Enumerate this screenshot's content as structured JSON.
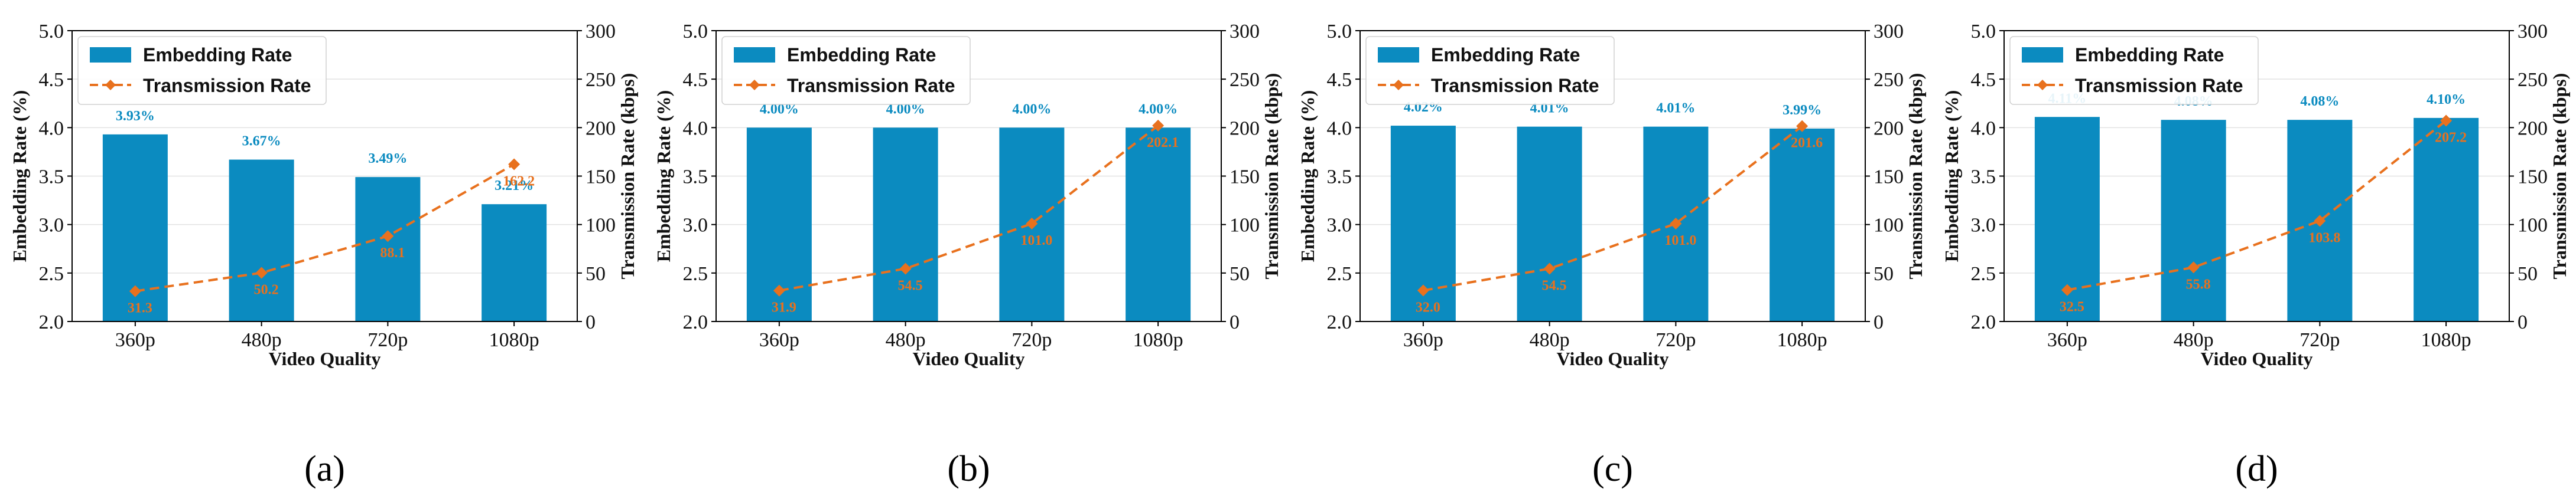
{
  "colors": {
    "bar": "#0b8bc0",
    "line": "#e8711e",
    "grid": "#e2e2e2"
  },
  "legend": {
    "embedding": "Embedding Rate",
    "transmission": "Transmission Rate"
  },
  "chart_data": [
    {
      "type": "bar",
      "caption": "(a)",
      "categories": [
        "360p",
        "480p",
        "720p",
        "1080p"
      ],
      "xlabel": "Video Quality",
      "ylabel": "Embedding Rate (%)",
      "y2label": "Transmission Rate (kbps)",
      "ylim": [
        2.0,
        5.0
      ],
      "yticks": [
        "2.0",
        "2.5",
        "3.0",
        "3.5",
        "4.0",
        "4.5",
        "5.0"
      ],
      "y2lim": [
        0,
        300
      ],
      "y2ticks": [
        "0",
        "50",
        "100",
        "150",
        "200",
        "250",
        "300"
      ],
      "series": [
        {
          "name": "Embedding Rate",
          "values": [
            3.93,
            3.67,
            3.49,
            3.21
          ],
          "labels": [
            "3.93%",
            "3.67%",
            "3.49%",
            "3.21%"
          ]
        },
        {
          "name": "Transmission Rate",
          "values": [
            31.3,
            50.2,
            88.1,
            162.2
          ],
          "labels": [
            "31.3",
            "50.2",
            "88.1",
            "162.2"
          ]
        }
      ],
      "grid": true,
      "legend_position": "top-left"
    },
    {
      "type": "bar",
      "caption": "(b)",
      "categories": [
        "360p",
        "480p",
        "720p",
        "1080p"
      ],
      "xlabel": "Video Quality",
      "ylabel": "Embedding Rate (%)",
      "y2label": "Transmission Rate (kbps)",
      "ylim": [
        2.0,
        5.0
      ],
      "yticks": [
        "2.0",
        "2.5",
        "3.0",
        "3.5",
        "4.0",
        "4.5",
        "5.0"
      ],
      "y2lim": [
        0,
        300
      ],
      "y2ticks": [
        "0",
        "50",
        "100",
        "150",
        "200",
        "250",
        "300"
      ],
      "series": [
        {
          "name": "Embedding Rate",
          "values": [
            4.0,
            4.0,
            4.0,
            4.0
          ],
          "labels": [
            "4.00%",
            "4.00%",
            "4.00%",
            "4.00%"
          ]
        },
        {
          "name": "Transmission Rate",
          "values": [
            31.9,
            54.5,
            101.0,
            202.1
          ],
          "labels": [
            "31.9",
            "54.5",
            "101.0",
            "202.1"
          ]
        }
      ],
      "grid": true,
      "legend_position": "top-left"
    },
    {
      "type": "bar",
      "caption": "(c)",
      "categories": [
        "360p",
        "480p",
        "720p",
        "1080p"
      ],
      "xlabel": "Video Quality",
      "ylabel": "Embedding Rate (%)",
      "y2label": "Transmission Rate (kbps)",
      "ylim": [
        2.0,
        5.0
      ],
      "yticks": [
        "2.0",
        "2.5",
        "3.0",
        "3.5",
        "4.0",
        "4.5",
        "5.0"
      ],
      "y2lim": [
        0,
        300
      ],
      "y2ticks": [
        "0",
        "50",
        "100",
        "150",
        "200",
        "250",
        "300"
      ],
      "series": [
        {
          "name": "Embedding Rate",
          "values": [
            4.02,
            4.01,
            4.01,
            3.99
          ],
          "labels": [
            "4.02%",
            "4.01%",
            "4.01%",
            "3.99%"
          ]
        },
        {
          "name": "Transmission Rate",
          "values": [
            32.0,
            54.5,
            101.0,
            201.6
          ],
          "labels": [
            "32.0",
            "54.5",
            "101.0",
            "201.6"
          ]
        }
      ],
      "grid": true,
      "legend_position": "top-left"
    },
    {
      "type": "bar",
      "caption": "(d)",
      "categories": [
        "360p",
        "480p",
        "720p",
        "1080p"
      ],
      "xlabel": "Video Quality",
      "ylabel": "Embedding Rate (%)",
      "y2label": "Transmission Rate (kbps)",
      "ylim": [
        2.0,
        5.0
      ],
      "yticks": [
        "2.0",
        "2.5",
        "3.0",
        "3.5",
        "4.0",
        "4.5",
        "5.0"
      ],
      "y2lim": [
        0,
        300
      ],
      "y2ticks": [
        "0",
        "50",
        "100",
        "150",
        "200",
        "250",
        "300"
      ],
      "series": [
        {
          "name": "Embedding Rate",
          "values": [
            4.11,
            4.08,
            4.08,
            4.1
          ],
          "labels": [
            "4.11%",
            "4.08%",
            "4.08%",
            "4.10%"
          ]
        },
        {
          "name": "Transmission Rate",
          "values": [
            32.5,
            55.8,
            103.8,
            207.2
          ],
          "labels": [
            "32.5",
            "55.8",
            "103.8",
            "207.2"
          ]
        }
      ],
      "grid": true,
      "legend_position": "top-left"
    }
  ]
}
